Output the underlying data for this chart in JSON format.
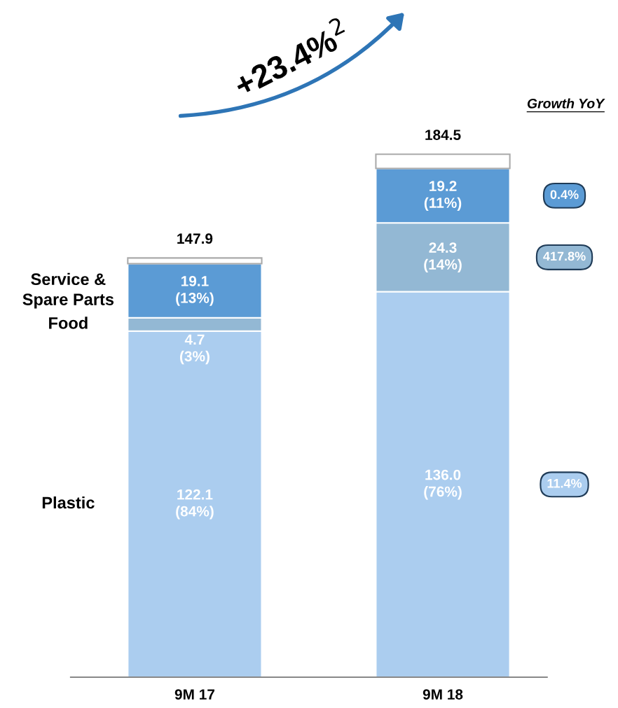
{
  "chart_data": {
    "type": "bar",
    "stacked": true,
    "categories": [
      "9M 17",
      "9M 18"
    ],
    "series": [
      {
        "name": "Plastic",
        "color": "#abcdef",
        "values": [
          122.1,
          136.0
        ],
        "value_labels": [
          "122.1\n(84%)",
          "136.0\n(76%)"
        ]
      },
      {
        "name": "Food",
        "color": "#93b8d4",
        "values": [
          4.7,
          24.3
        ],
        "value_labels": [
          "4.7\n(3%)",
          "24.3\n(14%)"
        ]
      },
      {
        "name": "Service &\nSpare Parts",
        "color": "#5b9bd5",
        "values": [
          19.1,
          19.2
        ],
        "value_labels": [
          "19.1\n(13%)",
          "19.2\n(11%)"
        ]
      },
      {
        "color": "#ffffff",
        "values": [
          2.0,
          5.0
        ],
        "value_labels": [
          null,
          null
        ]
      }
    ],
    "totals": [
      "147.9",
      "184.5"
    ],
    "annotations": [
      "+23.4%$^{2}$",
      "Growth YoY",
      "11.4%",
      "417.8%",
      "0.4%"
    ]
  }
}
